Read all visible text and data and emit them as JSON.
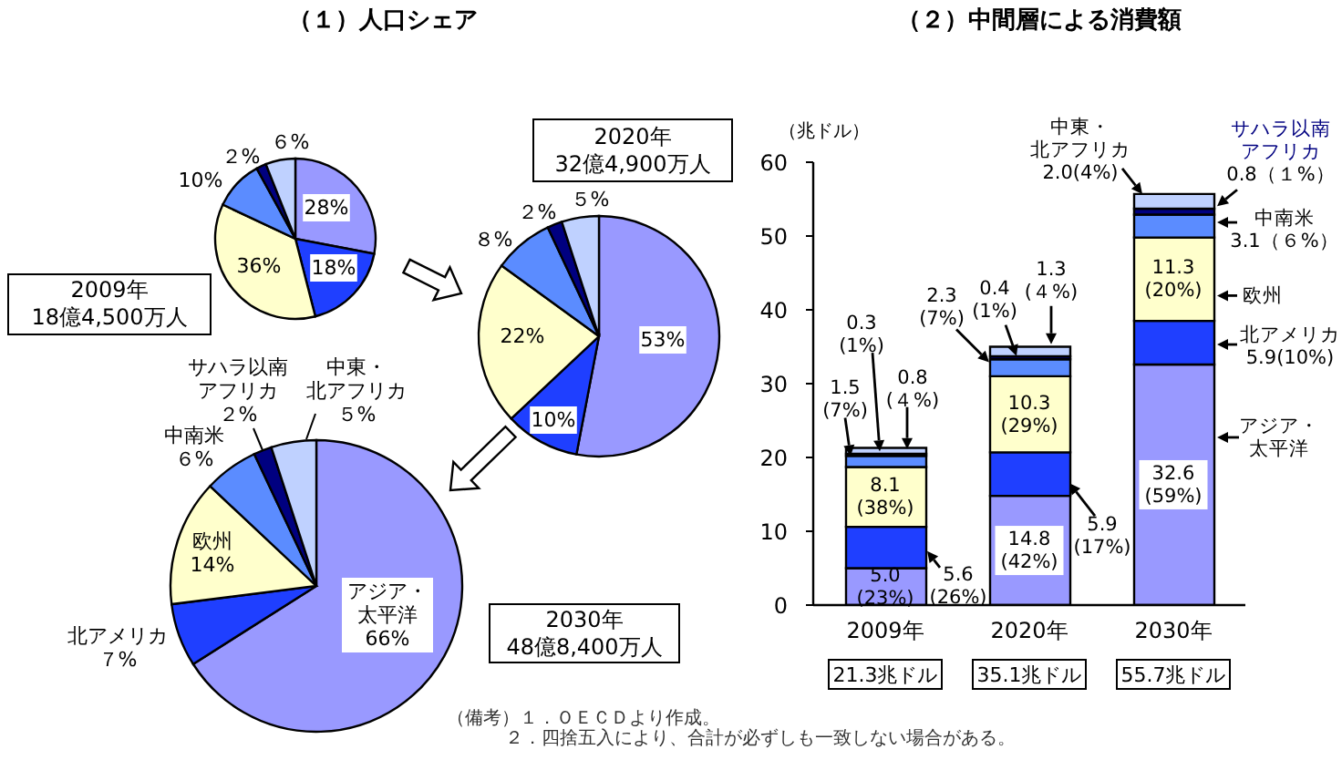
{
  "chart_data": [
    {
      "type": "pie",
      "title": "（１）人口シェア",
      "subtitle": "2009年\n18億4,500万人",
      "categories": [
        null,
        null,
        null,
        null,
        null,
        null
      ],
      "values": [
        28,
        18,
        36,
        10,
        2,
        6
      ],
      "colors": [
        "#9999ff",
        "#1f3fff",
        "#ffffcc",
        "#5b8cff",
        "#000080",
        "#bfd1ff"
      ],
      "value_labels": [
        "28%",
        "18%",
        "36%",
        "10%",
        "２%",
        "６%"
      ]
    },
    {
      "type": "pie",
      "subtitle": "2020年\n32億4,900万人",
      "categories": [
        null,
        null,
        null,
        null,
        null,
        null
      ],
      "values": [
        53,
        10,
        22,
        8,
        2,
        5
      ],
      "colors": [
        "#9999ff",
        "#1f3fff",
        "#ffffcc",
        "#5b8cff",
        "#000080",
        "#bfd1ff"
      ],
      "value_labels": [
        "53%",
        "10%",
        "22%",
        "８%",
        "２%",
        "５%"
      ]
    },
    {
      "type": "pie",
      "subtitle": "2030年\n48億8,400万人",
      "categories": [
        "アジア・太平洋",
        "北アメリカ",
        "欧州",
        "中南米",
        "サハラ以南アフリカ",
        "中東・北アフリカ"
      ],
      "values": [
        66,
        7,
        14,
        6,
        2,
        5
      ],
      "colors": [
        "#9999ff",
        "#1f3fff",
        "#ffffcc",
        "#5b8cff",
        "#000080",
        "#bfd1ff"
      ],
      "value_labels": [
        "66%",
        "７%",
        "14%",
        "６%",
        "２%",
        "５%"
      ]
    },
    {
      "type": "bar",
      "title": "（２）中間層による消費額",
      "ylabel": "（兆ドル）",
      "categories": [
        "2009年",
        "2020年",
        "2030年"
      ],
      "stacked": true,
      "legend": "right",
      "ylim": [
        0,
        60
      ],
      "yticks": [
        0,
        10,
        20,
        30,
        40,
        50,
        60
      ],
      "totals": [
        "21.3兆ドル",
        "35.1兆ドル",
        "55.7兆ドル"
      ],
      "series": [
        {
          "name": "アジア・太平洋",
          "color": "#9999ff",
          "values": [
            5.0,
            14.8,
            32.6
          ],
          "value_labels": [
            "5.0\n(23%)",
            "14.8\n(42%)",
            "32.6\n(59%)"
          ]
        },
        {
          "name": "北アメリカ",
          "color": "#1f3fff",
          "values": [
            5.6,
            5.9,
            5.9
          ],
          "value_labels": [
            "5.6\n(26%)",
            "5.9\n(17%)",
            "5.9(10%)"
          ]
        },
        {
          "name": "欧州",
          "color": "#ffffcc",
          "values": [
            8.1,
            10.3,
            11.3
          ],
          "value_labels": [
            "8.1\n(38%)",
            "10.3\n(29%)",
            "11.3\n(20%)"
          ]
        },
        {
          "name": "中南米",
          "color": "#5b8cff",
          "values": [
            1.5,
            2.3,
            3.1
          ],
          "value_labels": [
            "1.5\n(7%)",
            "2.3\n(7%)",
            "3.1（６%）"
          ]
        },
        {
          "name": "サハラ以南アフリカ",
          "color": "#000080",
          "values": [
            0.3,
            0.4,
            0.8
          ],
          "value_labels": [
            "0.3\n(1%)",
            "0.4\n(1%)",
            "0.8（１%）"
          ]
        },
        {
          "name": "中東・北アフリカ",
          "color": "#bfd1ff",
          "values": [
            0.8,
            1.3,
            2.0
          ],
          "value_labels": [
            "0.8\n(４%)",
            "1.3\n(４%)",
            "2.0(4%)"
          ]
        }
      ],
      "annotations": [
        "（備考）１．ＯＥＣＤより作成。",
        "２．四捨五入により、合計が必ずしも一致しない場合がある。"
      ]
    }
  ]
}
